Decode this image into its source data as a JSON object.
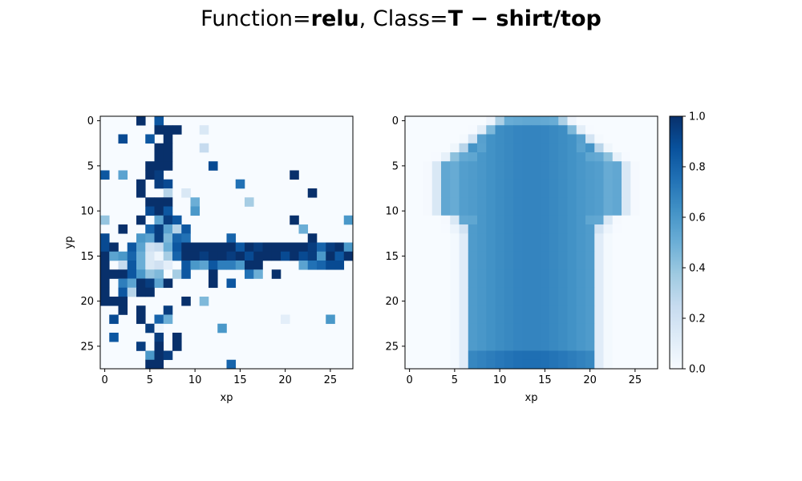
{
  "title": {
    "prefix": "Function=",
    "function": "relu",
    "separator": ", Class=",
    "class": "T − shirt/top"
  },
  "colormap": {
    "name": "Blues",
    "stops": [
      "#f7fbff",
      "#deebf7",
      "#c6dbef",
      "#9ecae1",
      "#6baed6",
      "#4292c6",
      "#2171b5",
      "#08519c",
      "#08306b"
    ]
  },
  "chart_data": [
    {
      "type": "heatmap",
      "panel": "left",
      "xlabel": "xp",
      "ylabel": "yp",
      "xticks": [
        0,
        5,
        10,
        15,
        20,
        25
      ],
      "yticks": [
        0,
        5,
        10,
        15,
        20,
        25
      ],
      "grid_size": [
        28,
        28
      ],
      "cells": [
        [
          4,
          0,
          1.0
        ],
        [
          6,
          0,
          0.85
        ],
        [
          6,
          1,
          1.0
        ],
        [
          7,
          1,
          1.0
        ],
        [
          8,
          1,
          1.0
        ],
        [
          11,
          1,
          0.15
        ],
        [
          2,
          2,
          0.9
        ],
        [
          5,
          2,
          0.85
        ],
        [
          7,
          2,
          1.0
        ],
        [
          6,
          3,
          1.0
        ],
        [
          7,
          3,
          1.0
        ],
        [
          11,
          3,
          0.25
        ],
        [
          6,
          4,
          1.0
        ],
        [
          7,
          4,
          1.0
        ],
        [
          5,
          5,
          1.0
        ],
        [
          6,
          5,
          1.0
        ],
        [
          7,
          5,
          1.0
        ],
        [
          12,
          5,
          0.9
        ],
        [
          0,
          6,
          0.85
        ],
        [
          2,
          6,
          0.55
        ],
        [
          5,
          6,
          1.0
        ],
        [
          6,
          6,
          0.95
        ],
        [
          21,
          6,
          1.0
        ],
        [
          4,
          7,
          1.0
        ],
        [
          6,
          7,
          0.95
        ],
        [
          7,
          7,
          0.9
        ],
        [
          15,
          7,
          0.75
        ],
        [
          4,
          8,
          1.0
        ],
        [
          7,
          8,
          0.3
        ],
        [
          9,
          8,
          0.15
        ],
        [
          23,
          8,
          1.0
        ],
        [
          5,
          9,
          1.0
        ],
        [
          6,
          9,
          1.0
        ],
        [
          7,
          9,
          1.0
        ],
        [
          10,
          9,
          0.5
        ],
        [
          16,
          9,
          0.35
        ],
        [
          5,
          10,
          0.9
        ],
        [
          6,
          10,
          1.0
        ],
        [
          7,
          10,
          0.85
        ],
        [
          10,
          10,
          0.6
        ],
        [
          0,
          11,
          0.4
        ],
        [
          4,
          11,
          1.0
        ],
        [
          6,
          11,
          0.55
        ],
        [
          7,
          11,
          0.95
        ],
        [
          8,
          11,
          0.85
        ],
        [
          21,
          11,
          1.0
        ],
        [
          27,
          11,
          0.6
        ],
        [
          2,
          12,
          1.0
        ],
        [
          5,
          12,
          0.8
        ],
        [
          6,
          12,
          0.95
        ],
        [
          7,
          12,
          0.55
        ],
        [
          8,
          12,
          0.3
        ],
        [
          9,
          12,
          0.85
        ],
        [
          22,
          12,
          0.5
        ],
        [
          0,
          13,
          0.9
        ],
        [
          4,
          13,
          0.6
        ],
        [
          5,
          13,
          0.55
        ],
        [
          6,
          13,
          0.95
        ],
        [
          7,
          13,
          0.45
        ],
        [
          8,
          13,
          0.8
        ],
        [
          9,
          13,
          0.75
        ],
        [
          14,
          13,
          0.8
        ],
        [
          23,
          13,
          1.0
        ],
        [
          0,
          14,
          0.9
        ],
        [
          1,
          14,
          1.0
        ],
        [
          3,
          14,
          0.85
        ],
        [
          4,
          14,
          0.55
        ],
        [
          5,
          14,
          0.2
        ],
        [
          6,
          14,
          0.25
        ],
        [
          7,
          14,
          0.5
        ],
        [
          8,
          14,
          0.85
        ],
        [
          9,
          14,
          1.0
        ],
        [
          10,
          14,
          1.0
        ],
        [
          11,
          14,
          1.0
        ],
        [
          12,
          14,
          1.0
        ],
        [
          13,
          14,
          1.0
        ],
        [
          14,
          14,
          1.0
        ],
        [
          15,
          14,
          0.85
        ],
        [
          16,
          14,
          1.0
        ],
        [
          17,
          14,
          0.95
        ],
        [
          18,
          14,
          1.0
        ],
        [
          19,
          14,
          1.0
        ],
        [
          20,
          14,
          1.0
        ],
        [
          21,
          14,
          1.0
        ],
        [
          22,
          14,
          1.0
        ],
        [
          23,
          14,
          0.95
        ],
        [
          24,
          14,
          0.8
        ],
        [
          25,
          14,
          0.95
        ],
        [
          26,
          14,
          1.0
        ],
        [
          27,
          14,
          0.6
        ],
        [
          0,
          15,
          1.0
        ],
        [
          1,
          15,
          0.55
        ],
        [
          2,
          15,
          0.6
        ],
        [
          3,
          15,
          0.8
        ],
        [
          4,
          15,
          0.5
        ],
        [
          5,
          15,
          0.15
        ],
        [
          6,
          15,
          0.05
        ],
        [
          7,
          15,
          0.35
        ],
        [
          8,
          15,
          0.8
        ],
        [
          9,
          15,
          1.0
        ],
        [
          10,
          15,
          1.0
        ],
        [
          11,
          15,
          0.95
        ],
        [
          12,
          15,
          1.0
        ],
        [
          13,
          15,
          1.0
        ],
        [
          14,
          15,
          0.95
        ],
        [
          15,
          15,
          1.0
        ],
        [
          16,
          15,
          0.9
        ],
        [
          17,
          15,
          1.0
        ],
        [
          18,
          15,
          1.0
        ],
        [
          19,
          15,
          1.0
        ],
        [
          20,
          15,
          0.9
        ],
        [
          21,
          15,
          1.0
        ],
        [
          22,
          15,
          0.9
        ],
        [
          23,
          15,
          0.95
        ],
        [
          24,
          15,
          0.6
        ],
        [
          25,
          15,
          1.0
        ],
        [
          26,
          15,
          0.85
        ],
        [
          27,
          15,
          1.0
        ],
        [
          0,
          16,
          1.0
        ],
        [
          2,
          16,
          0.25
        ],
        [
          3,
          16,
          0.85
        ],
        [
          4,
          16,
          0.5
        ],
        [
          5,
          16,
          0.15
        ],
        [
          6,
          16,
          0.2
        ],
        [
          7,
          16,
          0.1
        ],
        [
          9,
          16,
          0.85
        ],
        [
          10,
          16,
          0.6
        ],
        [
          11,
          16,
          0.55
        ],
        [
          12,
          16,
          0.85
        ],
        [
          13,
          16,
          0.7
        ],
        [
          14,
          16,
          0.7
        ],
        [
          15,
          16,
          0.6
        ],
        [
          16,
          16,
          1.0
        ],
        [
          17,
          16,
          1.0
        ],
        [
          22,
          16,
          0.55
        ],
        [
          23,
          16,
          0.75
        ],
        [
          24,
          16,
          0.8
        ],
        [
          25,
          16,
          0.9
        ],
        [
          26,
          16,
          0.9
        ],
        [
          0,
          17,
          1.0
        ],
        [
          1,
          17,
          1.0
        ],
        [
          2,
          17,
          1.0
        ],
        [
          3,
          17,
          0.85
        ],
        [
          4,
          17,
          0.6
        ],
        [
          5,
          17,
          0.4
        ],
        [
          6,
          17,
          0.45
        ],
        [
          8,
          17,
          0.35
        ],
        [
          9,
          17,
          0.85
        ],
        [
          12,
          17,
          1.0
        ],
        [
          16,
          17,
          0.75
        ],
        [
          17,
          17,
          0.5
        ],
        [
          19,
          17,
          1.0
        ],
        [
          0,
          18,
          1.0
        ],
        [
          2,
          18,
          0.7
        ],
        [
          3,
          18,
          0.55
        ],
        [
          4,
          18,
          1.0
        ],
        [
          5,
          18,
          0.95
        ],
        [
          6,
          18,
          0.55
        ],
        [
          7,
          18,
          1.0
        ],
        [
          12,
          18,
          1.0
        ],
        [
          14,
          18,
          0.85
        ],
        [
          0,
          19,
          1.0
        ],
        [
          2,
          19,
          0.85
        ],
        [
          3,
          19,
          0.3
        ],
        [
          4,
          19,
          1.0
        ],
        [
          5,
          19,
          1.0
        ],
        [
          0,
          20,
          1.0
        ],
        [
          1,
          20,
          1.0
        ],
        [
          2,
          20,
          1.0
        ],
        [
          9,
          20,
          1.0
        ],
        [
          11,
          20,
          0.45
        ],
        [
          2,
          21,
          1.0
        ],
        [
          4,
          21,
          1.0
        ],
        [
          7,
          21,
          0.95
        ],
        [
          1,
          22,
          0.9
        ],
        [
          4,
          22,
          1.0
        ],
        [
          6,
          22,
          0.8
        ],
        [
          7,
          22,
          0.5
        ],
        [
          20,
          22,
          0.1
        ],
        [
          25,
          22,
          0.6
        ],
        [
          5,
          23,
          0.95
        ],
        [
          6,
          23,
          0.05
        ],
        [
          13,
          23,
          0.6
        ],
        [
          1,
          24,
          0.85
        ],
        [
          6,
          24,
          0.95
        ],
        [
          8,
          24,
          1.0
        ],
        [
          4,
          25,
          0.95
        ],
        [
          6,
          25,
          1.0
        ],
        [
          8,
          25,
          1.0
        ],
        [
          5,
          26,
          0.6
        ],
        [
          6,
          26,
          1.0
        ],
        [
          7,
          26,
          0.95
        ],
        [
          5,
          27,
          1.0
        ],
        [
          6,
          27,
          1.0
        ],
        [
          14,
          27,
          0.8
        ]
      ]
    },
    {
      "type": "heatmap",
      "panel": "right",
      "xlabel": "xp",
      "xticks": [
        0,
        5,
        10,
        15,
        20,
        25
      ],
      "yticks": [
        0,
        5,
        10,
        15,
        20,
        25
      ],
      "grid_size": [
        28,
        28
      ],
      "shape": "T-shirt silhouette, body values about 0.55-0.7, soft edges fading to 0"
    }
  ],
  "colorbar": {
    "ticks": [
      "0.0",
      "0.2",
      "0.4",
      "0.6",
      "0.8",
      "1.0"
    ],
    "range": [
      0,
      1
    ]
  }
}
